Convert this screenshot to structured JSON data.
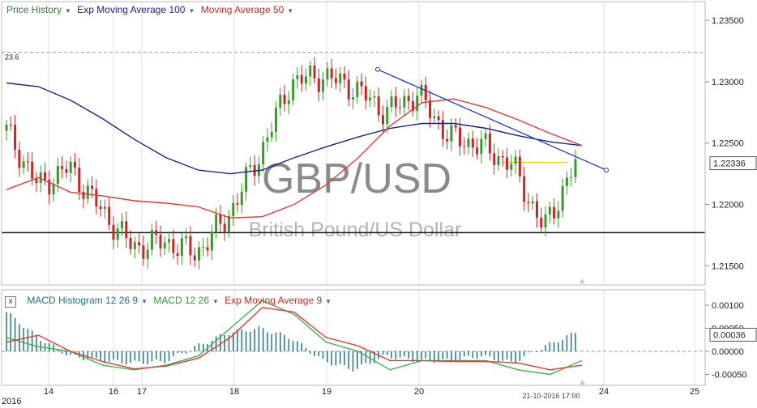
{
  "price_legend": {
    "price_history": "Price History",
    "ema": "Exp Moving Average 100",
    "ma": "Moving Average 50"
  },
  "macd_legend": {
    "close": "x",
    "histogram": "MACD Histogram 12 26 9",
    "macd": "MACD 12 26",
    "signal": "Exp Moving Average 9"
  },
  "watermark": {
    "symbol": "GBP/USD",
    "name": "British Pound/US Dollar"
  },
  "price_axis": {
    "ticks": [
      "1.23500",
      "1.23000",
      "1.22500",
      "1.22000",
      "1.21500"
    ],
    "current": "1.22336"
  },
  "macd_axis": {
    "ticks": [
      "0.00100",
      "0.00050",
      "0.00000",
      "-0.00050"
    ],
    "current": "0.00036"
  },
  "x_axis": {
    "ticks": [
      "14",
      "16",
      "17",
      "18",
      "19",
      "20",
      "24",
      "25"
    ],
    "year": "2016",
    "cursor_label": "21-10-2016 17:00"
  },
  "fib_label": "23.6",
  "colors": {
    "up_candle": "#3a9a2e",
    "down_candle": "#c62828",
    "ema": "#1a237e",
    "ma": "#e53935",
    "macd_hist": "#2e7d8e",
    "macd_line": "#39b54a",
    "signal_line": "#e53935",
    "trendline": "#1f35c8",
    "watermark": "#8a8a8a"
  },
  "chart_data": {
    "type": "line",
    "ylim": [
      1.2136,
      1.2362
    ],
    "macd_ylim": [
      -0.0007,
      0.00115
    ],
    "series": [
      {
        "name": "Exp Moving Average 100",
        "values": [
          1.2299,
          1.2296,
          1.2285,
          1.227,
          1.2253,
          1.2238,
          1.2228,
          1.2225,
          1.2228,
          1.2238,
          1.2247,
          1.2255,
          1.2262,
          1.2266,
          1.2266,
          1.2262,
          1.2256,
          1.2251,
          1.2248
        ]
      },
      {
        "name": "Moving Average 50",
        "values": [
          1.2212,
          1.2222,
          1.221,
          1.2207,
          1.2203,
          1.2201,
          1.2198,
          1.2189,
          1.219,
          1.22,
          1.2216,
          1.2238,
          1.2264,
          1.2283,
          1.2286,
          1.2279,
          1.2269,
          1.2258,
          1.2248
        ]
      },
      {
        "name": "Price",
        "values": [
          1.226,
          1.2215,
          1.223,
          1.2195,
          1.2165,
          1.217,
          1.216,
          1.219,
          1.224,
          1.23,
          1.2305,
          1.2295,
          1.2275,
          1.229,
          1.2255,
          1.2248,
          1.2232,
          1.218,
          1.2233
        ]
      },
      {
        "name": "MACD Histogram 12 26 9",
        "values": [
          0.00085,
          0.0003,
          -0.0001,
          -0.0002,
          -0.00025,
          -0.00022,
          0.0001,
          0.0004,
          0.0005,
          0.0003,
          -0.0002,
          -0.0004,
          -0.0001,
          -0.0002,
          -0.0002,
          -0.0001,
          -0.00025,
          0.0001,
          0.0004
        ]
      },
      {
        "name": "MACD 12 26",
        "values": [
          0.0003,
          0.0001,
          0.0,
          -0.0003,
          -0.0004,
          -0.0003,
          -0.0001,
          0.0005,
          0.0011,
          0.0008,
          0.0002,
          0.0,
          -0.0004,
          -0.0002,
          -0.0002,
          -0.0002,
          -0.0004,
          -0.0005,
          -0.0002
        ]
      },
      {
        "name": "Exp Moving Average 9",
        "values": [
          0.0002,
          0.00035,
          0.0,
          -0.00022,
          -0.00038,
          -0.00032,
          -0.00015,
          0.0003,
          0.00095,
          0.00085,
          0.0003,
          0.00012,
          -0.0002,
          -0.0002,
          -0.00022,
          -0.00022,
          -0.00025,
          -0.0004,
          -0.0003
        ]
      }
    ],
    "trendline": {
      "x": [
        0.537,
        0.868
      ],
      "y": [
        1.231,
        1.2228
      ]
    },
    "resistance_level": 1.2235,
    "support_level": 1.2177,
    "fib_level": 1.2324
  }
}
